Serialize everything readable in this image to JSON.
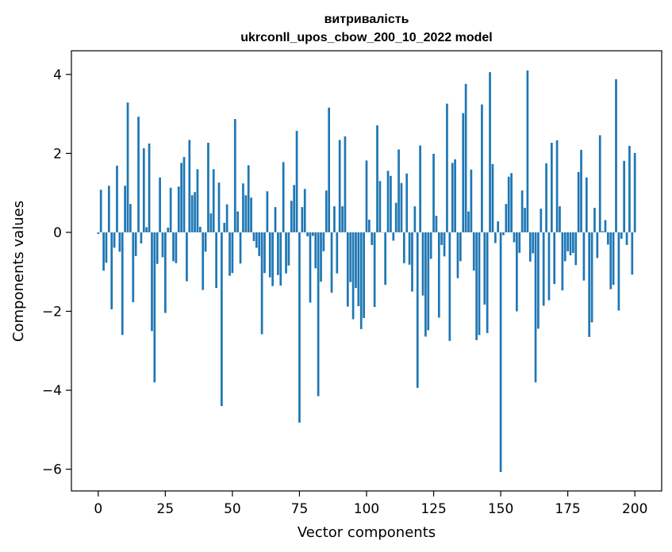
{
  "chart_data": {
    "type": "bar",
    "title": "витривалість",
    "subtitle": "ukrconll_upos_cbow_200_10_2022 model",
    "xlabel": "Vector components",
    "ylabel": "Components values",
    "xlim": [
      -10,
      210
    ],
    "ylim": [
      -6.55,
      4.6
    ],
    "xticks": [
      0,
      25,
      50,
      75,
      100,
      125,
      150,
      175,
      200
    ],
    "xtick_labels": [
      "0",
      "25",
      "50",
      "75",
      "100",
      "125",
      "150",
      "175",
      "200"
    ],
    "yticks": [
      -6,
      -4,
      -2,
      0,
      2,
      4
    ],
    "ytick_labels": [
      "−6",
      "−4",
      "−2",
      "0",
      "2",
      "4"
    ],
    "grid": false,
    "bar_color": "#1f77b4",
    "series": [
      {
        "values": [
          -0.04,
          1.08,
          -0.97,
          -0.77,
          1.18,
          -1.95,
          -0.39,
          1.69,
          -0.49,
          -2.6,
          1.18,
          3.29,
          0.72,
          -1.77,
          -0.6,
          2.93,
          -0.28,
          2.13,
          0.13,
          2.25,
          -2.5,
          -3.8,
          -0.8,
          1.39,
          -0.63,
          -2.04,
          0.12,
          1.13,
          -0.73,
          -0.78,
          1.16,
          1.76,
          1.91,
          -1.24,
          2.34,
          0.94,
          1.02,
          1.6,
          0.14,
          -1.46,
          -0.49,
          2.27,
          0.48,
          1.6,
          -1.41,
          1.26,
          -4.4,
          0.24,
          0.71,
          -1.1,
          -1.03,
          2.87,
          0.53,
          -0.79,
          1.24,
          0.94,
          1.7,
          0.88,
          -0.22,
          -0.39,
          -0.6,
          -2.58,
          -1.03,
          1.04,
          -1.14,
          -1.36,
          0.64,
          -1.08,
          -1.35,
          1.78,
          -1.04,
          -0.84,
          0.8,
          1.2,
          2.57,
          -4.82,
          0.64,
          1.1,
          -0.1,
          -1.78,
          -0.09,
          -0.91,
          -4.15,
          -1.25,
          -0.48,
          1.06,
          3.16,
          -1.53,
          0.66,
          -1.04,
          2.34,
          0.66,
          2.43,
          -1.88,
          -1.26,
          -2.2,
          -1.41,
          -1.87,
          -2.45,
          -2.17,
          1.82,
          0.32,
          -0.32,
          -1.89,
          2.71,
          1.3,
          0.0,
          -1.33,
          1.56,
          1.43,
          -0.21,
          0.75,
          2.1,
          1.25,
          -0.78,
          1.49,
          -0.82,
          -1.5,
          0.66,
          -3.94,
          2.2,
          -1.6,
          -2.64,
          -2.48,
          -0.67,
          1.99,
          0.42,
          -2.16,
          -0.32,
          -0.61,
          3.26,
          -2.75,
          1.76,
          1.85,
          -1.16,
          -0.73,
          3.02,
          3.76,
          0.53,
          1.59,
          -0.97,
          -2.73,
          -2.6,
          3.24,
          -1.83,
          -2.55,
          4.06,
          1.73,
          -0.27,
          0.28,
          -6.07,
          -0.07,
          0.72,
          1.41,
          1.5,
          -0.25,
          -2.0,
          -0.52,
          1.06,
          0.62,
          4.1,
          -0.74,
          -0.53,
          -3.8,
          -2.44,
          0.6,
          -1.86,
          1.75,
          -1.72,
          2.27,
          -1.31,
          2.33,
          0.66,
          -1.47,
          -0.73,
          -0.48,
          -0.58,
          -0.52,
          -0.83,
          1.53,
          2.09,
          -1.22,
          1.39,
          -2.65,
          -2.28,
          0.62,
          -0.65,
          2.46,
          0.03,
          0.31,
          -0.31,
          -1.44,
          -1.33,
          3.88,
          -1.98,
          -0.16,
          1.81,
          -0.32,
          2.19,
          -1.07,
          2.01
        ]
      }
    ]
  }
}
